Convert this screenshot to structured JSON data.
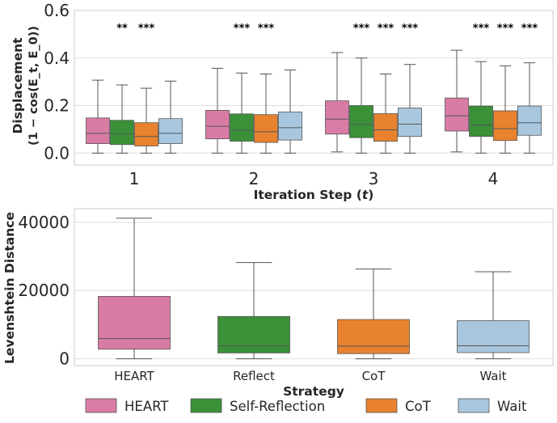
{
  "colors": {
    "HEART": "#d97ca5",
    "Self-Reflection": "#3a9138",
    "CoT": "#e8822e",
    "Wait": "#a8c7df",
    "grid": "#dedede",
    "frame": "#cccccc",
    "whisker": "#555555"
  },
  "legend": {
    "placement": "bottom",
    "entries": [
      "HEART",
      "Self-Reflection",
      "CoT",
      "Wait"
    ]
  },
  "chart_data": [
    {
      "type": "box",
      "xlabel": "Iteration Step (t)",
      "ylabel": "Displacement",
      "ylabel_formula": "(1 − cos(E_t, E_0))",
      "ylim": [
        -0.05,
        0.6
      ],
      "yticks": [
        "0.0",
        "0.2",
        "0.4",
        "0.6"
      ],
      "ytick_values": [
        0.0,
        0.2,
        0.4,
        0.6
      ],
      "grid": true,
      "categories": [
        "1",
        "2",
        "3",
        "4"
      ],
      "series": [
        {
          "name": "HEART",
          "boxes": [
            {
              "whislo": 0.0,
              "q1": 0.04,
              "med": 0.083,
              "q3": 0.148,
              "whishi": 0.307
            },
            {
              "whislo": 0.0,
              "q1": 0.06,
              "med": 0.113,
              "q3": 0.18,
              "whishi": 0.357
            },
            {
              "whislo": 0.005,
              "q1": 0.08,
              "med": 0.143,
              "q3": 0.22,
              "whishi": 0.423
            },
            {
              "whislo": 0.005,
              "q1": 0.093,
              "med": 0.157,
              "q3": 0.232,
              "whishi": 0.433
            }
          ]
        },
        {
          "name": "Self-Reflection",
          "boxes": [
            {
              "whislo": 0.0,
              "q1": 0.036,
              "med": 0.08,
              "q3": 0.138,
              "whishi": 0.287
            },
            {
              "whislo": 0.0,
              "q1": 0.05,
              "med": 0.096,
              "q3": 0.165,
              "whishi": 0.337
            },
            {
              "whislo": 0.0,
              "q1": 0.065,
              "med": 0.12,
              "q3": 0.2,
              "whishi": 0.4
            },
            {
              "whislo": 0.0,
              "q1": 0.07,
              "med": 0.118,
              "q3": 0.198,
              "whishi": 0.385
            }
          ]
        },
        {
          "name": "CoT",
          "boxes": [
            {
              "whislo": 0.0,
              "q1": 0.03,
              "med": 0.07,
              "q3": 0.128,
              "whishi": 0.273
            },
            {
              "whislo": 0.0,
              "q1": 0.045,
              "med": 0.09,
              "q3": 0.162,
              "whishi": 0.333
            },
            {
              "whislo": 0.0,
              "q1": 0.05,
              "med": 0.098,
              "q3": 0.166,
              "whishi": 0.333
            },
            {
              "whislo": 0.0,
              "q1": 0.053,
              "med": 0.103,
              "q3": 0.178,
              "whishi": 0.367
            }
          ]
        },
        {
          "name": "Wait",
          "boxes": [
            {
              "whislo": 0.0,
              "q1": 0.04,
              "med": 0.083,
              "q3": 0.145,
              "whishi": 0.303
            },
            {
              "whislo": 0.0,
              "q1": 0.055,
              "med": 0.107,
              "q3": 0.173,
              "whishi": 0.35
            },
            {
              "whislo": 0.0,
              "q1": 0.07,
              "med": 0.122,
              "q3": 0.19,
              "whishi": 0.373
            },
            {
              "whislo": 0.0,
              "q1": 0.075,
              "med": 0.128,
              "q3": 0.198,
              "whishi": 0.38
            }
          ]
        }
      ],
      "significance": [
        {
          "category": "1",
          "series": "Self-Reflection",
          "label": "**"
        },
        {
          "category": "1",
          "series": "CoT",
          "label": "***"
        },
        {
          "category": "2",
          "series": "Self-Reflection",
          "label": "***"
        },
        {
          "category": "2",
          "series": "CoT",
          "label": "***"
        },
        {
          "category": "3",
          "series": "Self-Reflection",
          "label": "***"
        },
        {
          "category": "3",
          "series": "CoT",
          "label": "***"
        },
        {
          "category": "3",
          "series": "Wait",
          "label": "***"
        },
        {
          "category": "4",
          "series": "Self-Reflection",
          "label": "***"
        },
        {
          "category": "4",
          "series": "CoT",
          "label": "***"
        },
        {
          "category": "4",
          "series": "Wait",
          "label": "***"
        }
      ]
    },
    {
      "type": "box",
      "xlabel": "Strategy",
      "ylabel": "Levenshtein Distance",
      "ylim": [
        -2000,
        44000
      ],
      "yticks": [
        "0",
        "20000",
        "40000"
      ],
      "ytick_values": [
        0,
        20000,
        40000
      ],
      "grid": true,
      "categories": [
        "HEART",
        "Reflect",
        "CoT",
        "Wait"
      ],
      "series": [
        {
          "name": "",
          "boxes": [
            {
              "whislo": 0,
              "q1": 2800,
              "med": 5900,
              "q3": 18300,
              "whishi": 41200
            },
            {
              "whislo": 0,
              "q1": 1700,
              "med": 3800,
              "q3": 12400,
              "whishi": 28200
            },
            {
              "whislo": 0,
              "q1": 1500,
              "med": 3700,
              "q3": 11500,
              "whishi": 26300
            },
            {
              "whislo": 0,
              "q1": 1800,
              "med": 3800,
              "q3": 11200,
              "whishi": 25500
            }
          ]
        }
      ],
      "box_colors": [
        "HEART",
        "Self-Reflection",
        "CoT",
        "Wait"
      ]
    }
  ]
}
